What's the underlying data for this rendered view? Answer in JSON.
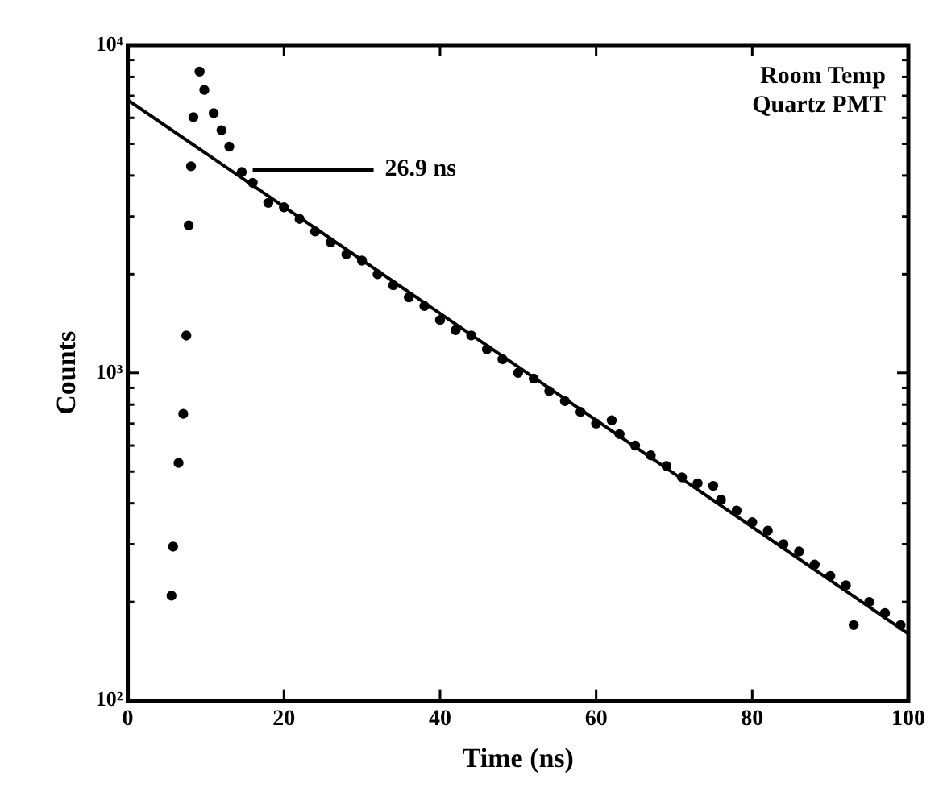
{
  "chart_data": {
    "type": "scatter",
    "xlabel": "Time (ns)",
    "ylabel": "Counts",
    "log": "y",
    "grid": false,
    "legend": false,
    "marker": "circle",
    "xlim": [
      0,
      100
    ],
    "xticks": [
      0,
      20,
      40,
      60,
      80,
      100
    ],
    "ylim": [
      100,
      10000
    ],
    "yticks": [
      {
        "value": 100,
        "label": "10²"
      },
      {
        "value": 200,
        "label": null
      },
      {
        "value": 300,
        "label": null
      },
      {
        "value": 400,
        "label": null
      },
      {
        "value": 500,
        "label": null
      },
      {
        "value": 600,
        "label": null
      },
      {
        "value": 700,
        "label": null
      },
      {
        "value": 800,
        "label": null
      },
      {
        "value": 900,
        "label": null
      },
      {
        "value": 1000,
        "label": "10³"
      },
      {
        "value": 2000,
        "label": null
      },
      {
        "value": 3000,
        "label": null
      },
      {
        "value": 4000,
        "label": null
      },
      {
        "value": 5000,
        "label": null
      },
      {
        "value": 6000,
        "label": null
      },
      {
        "value": 7000,
        "label": null
      },
      {
        "value": 8000,
        "label": null
      },
      {
        "value": 9000,
        "label": null
      },
      {
        "value": 10000,
        "label": "10⁴"
      }
    ],
    "series": [
      {
        "color": "#000000",
        "x": [
          5.6,
          5.8,
          6.5,
          7.1,
          7.5,
          7.8,
          8.1,
          8.4,
          9.2,
          9.8,
          11,
          12,
          13,
          14.6,
          16,
          18,
          20,
          22,
          24,
          26,
          28,
          30,
          32,
          34,
          36,
          38,
          40,
          42,
          44,
          46,
          48,
          50,
          52,
          54,
          56,
          58,
          60,
          62,
          63,
          65,
          67,
          69,
          71,
          73,
          75,
          76,
          78,
          80,
          82,
          84,
          86,
          88,
          90,
          92,
          93,
          95,
          97,
          99
        ],
        "values": [
          209,
          295,
          531,
          750,
          1300,
          2820,
          4270,
          6030,
          8300,
          7300,
          6200,
          5500,
          4900,
          4100,
          3800,
          3300,
          3200,
          2950,
          2700,
          2500,
          2300,
          2200,
          2000,
          1850,
          1700,
          1600,
          1450,
          1350,
          1300,
          1180,
          1100,
          1000,
          960,
          880,
          820,
          760,
          700,
          716,
          650,
          600,
          560,
          520,
          480,
          460,
          452,
          410,
          380,
          350,
          330,
          300,
          285,
          260,
          240,
          225,
          170,
          200,
          185,
          170
        ]
      },
      {
        "type": "line",
        "color": "#000000",
        "marker": "none",
        "line_style": "solid",
        "x": [
          0,
          100
        ],
        "values": [
          6800,
          160
        ]
      }
    ],
    "annotations": [
      "26.9 ns",
      "Room Temp",
      "Quartz PMT"
    ]
  }
}
